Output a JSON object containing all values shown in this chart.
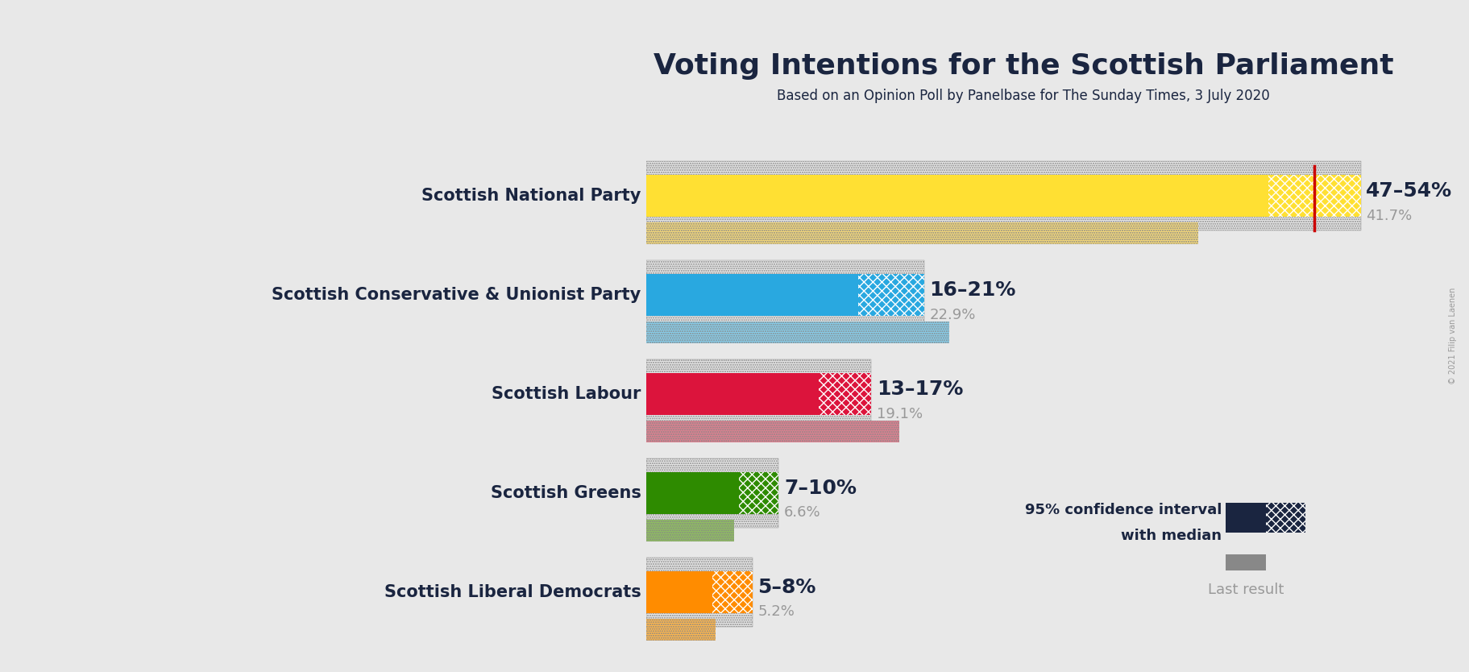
{
  "title": "Voting Intentions for the Scottish Parliament",
  "subtitle": "Based on an Opinion Poll by Panelbase for The Sunday Times, 3 July 2020",
  "copyright": "© 2021 Filip van Laenen",
  "parties": [
    "Scottish National Party",
    "Scottish Conservative & Unionist Party",
    "Scottish Labour",
    "Scottish Greens",
    "Scottish Liberal Democrats"
  ],
  "ci_low": [
    47,
    16,
    13,
    7,
    5
  ],
  "ci_high": [
    54,
    21,
    17,
    10,
    8
  ],
  "last_result": [
    41.7,
    22.9,
    19.1,
    6.6,
    5.2
  ],
  "colors": [
    "#FFE033",
    "#29A8E0",
    "#DC143C",
    "#2E8B00",
    "#FF8C00"
  ],
  "colors_light": [
    "#F5D97A",
    "#87CEEB",
    "#E08090",
    "#8FBF60",
    "#FFB74D"
  ],
  "bg_color": "#E8E8E8",
  "text_color": "#1a2540",
  "gray_color": "#999999",
  "legend_dark": "#1a2540",
  "red_line_color": "#CC0000",
  "title_fontsize": 26,
  "subtitle_fontsize": 12,
  "label_fontsize": 15,
  "range_fontsize": 18,
  "last_fontsize": 13,
  "legend_fontsize": 13,
  "copyright_fontsize": 7
}
